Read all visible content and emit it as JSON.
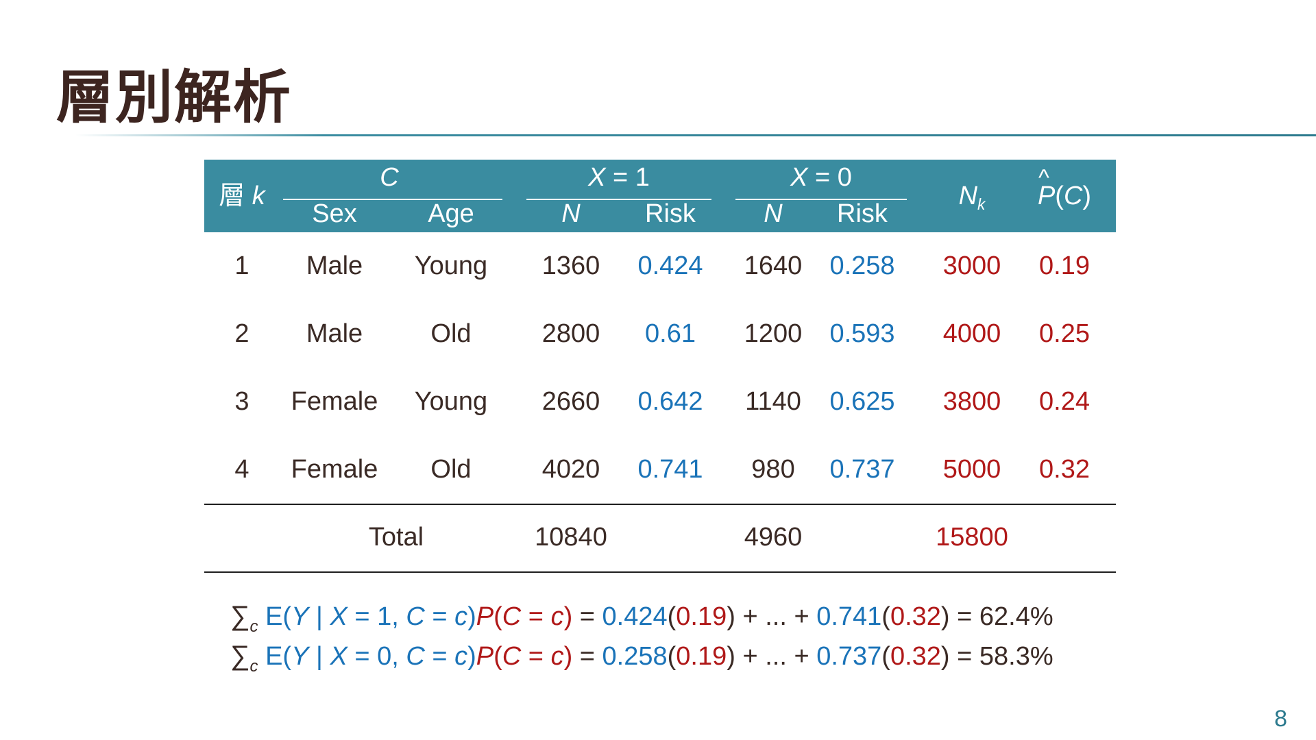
{
  "slide": {
    "title": "層別解析",
    "page_number": "8"
  },
  "table": {
    "header": {
      "stratum_label": "層",
      "stratum_var": "k",
      "c_group": "C",
      "sex": "Sex",
      "age": "Age",
      "x1_var": "X",
      "x1_eq": " = 1",
      "x0_var": "X",
      "x0_eq": " = 0",
      "n1": "N",
      "risk1": "Risk",
      "n0": "N",
      "risk0": "Risk",
      "nk_var": "N",
      "nk_sub": "k",
      "pc_var": "P",
      "pc_open": "(",
      "pc_c": "C",
      "pc_close": ")"
    },
    "rows": [
      {
        "k": "1",
        "sex": "Male",
        "age": "Young",
        "n1": "1360",
        "risk1": "0.424",
        "n0": "1640",
        "risk0": "0.258",
        "nk": "3000",
        "pc": "0.19"
      },
      {
        "k": "2",
        "sex": "Male",
        "age": "Old",
        "n1": "2800",
        "risk1": "0.61",
        "n0": "1200",
        "risk0": "0.593",
        "nk": "4000",
        "pc": "0.25"
      },
      {
        "k": "3",
        "sex": "Female",
        "age": "Young",
        "n1": "2660",
        "risk1": "0.642",
        "n0": "1140",
        "risk0": "0.625",
        "nk": "3800",
        "pc": "0.24"
      },
      {
        "k": "4",
        "sex": "Female",
        "age": "Old",
        "n1": "4020",
        "risk1": "0.741",
        "n0": "980",
        "risk0": "0.737",
        "nk": "5000",
        "pc": "0.32"
      }
    ],
    "total": {
      "label": "Total",
      "n1": "10840",
      "n0": "4960",
      "nk": "15800"
    }
  },
  "formulas": [
    {
      "sigma": "∑",
      "sub": "c",
      "e_open": " E(",
      "y": "Y",
      "bar": " | ",
      "x": "X",
      "x_eq": " = 1, ",
      "c1": "C",
      "eq1": " = ",
      "c2": "c",
      "close1": ")",
      "p": "P",
      "p_open": "(",
      "c3": "C",
      "eq2": " = ",
      "c4": "c",
      "p_close": ")",
      "equals": " = ",
      "first_risk": "0.424",
      "first_p_open": "(",
      "first_weight": "0.19",
      "first_p_close": ")",
      "dots": " + ... + ",
      "last_risk": "0.741",
      "last_p_open": "(",
      "last_weight": "0.32",
      "last_p_close": ")",
      "result": " = 62.4%"
    },
    {
      "sigma": "∑",
      "sub": "c",
      "e_open": " E(",
      "y": "Y",
      "bar": " | ",
      "x": "X",
      "x_eq": " = 0, ",
      "c1": "C",
      "eq1": " = ",
      "c2": "c",
      "close1": ")",
      "p": "P",
      "p_open": "(",
      "c3": "C",
      "eq2": " = ",
      "c4": "c",
      "p_close": ")",
      "equals": " = ",
      "first_risk": "0.258",
      "first_p_open": "(",
      "first_weight": "0.19",
      "first_p_close": ")",
      "dots": " + ... + ",
      "last_risk": "0.737",
      "last_p_open": "(",
      "last_weight": "0.32",
      "last_p_close": ")",
      "result": " = 58.3%"
    }
  ],
  "colors": {
    "header_bg": "#3a8ca0",
    "risk_blue": "#1a73b8",
    "accent_red": "#b01818",
    "title_brown": "#3d2520"
  }
}
